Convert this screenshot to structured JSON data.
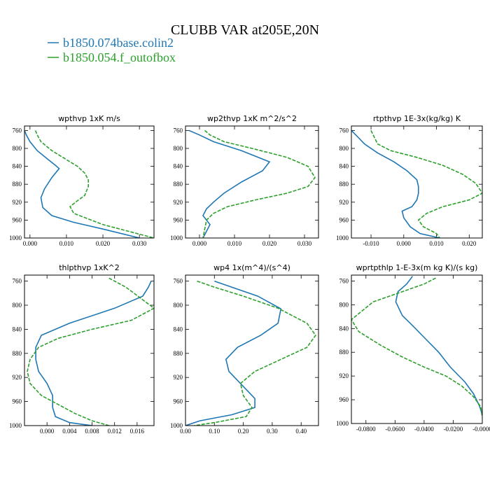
{
  "figure": {
    "title": "CLUBB VAR at205E,20N",
    "colors": {
      "base": "#1f77b4",
      "test": "#2ca02c"
    },
    "legend": [
      {
        "label": "b1850.074base.colin2",
        "color": "#1f77b4",
        "dash": "solid"
      },
      {
        "label": "b1850.054.f_outofbox",
        "color": "#2ca02c",
        "dash": "dashed"
      }
    ]
  },
  "chart_data": [
    {
      "type": "line",
      "title": "wpthvp   1xK m/s",
      "ylim": [
        1000,
        750
      ],
      "yticks": [
        760,
        800,
        840,
        880,
        920,
        960,
        1000
      ],
      "xlim": [
        -0.0015,
        0.034
      ],
      "xticks": [
        0.0,
        0.01,
        0.02,
        0.03
      ],
      "xtick_labels": [
        "0.000",
        "0.010",
        "0.020",
        "0.030"
      ],
      "series": [
        {
          "name": "b1850.074base.colin2",
          "color": "#1f77b4",
          "dash": "solid",
          "x": [
            -0.0015,
            -0.001,
            0.0,
            0.002,
            0.005,
            0.007,
            0.008,
            0.006,
            0.004,
            0.003,
            0.0035,
            0.006,
            0.012,
            0.02,
            0.03
          ],
          "y": [
            760,
            770,
            785,
            805,
            825,
            838,
            845,
            865,
            890,
            910,
            932,
            950,
            965,
            980,
            1000
          ]
        },
        {
          "name": "b1850.054.f_outofbox",
          "color": "#2ca02c",
          "dash": "dashed",
          "x": [
            0.0015,
            0.002,
            0.003,
            0.006,
            0.01,
            0.013,
            0.015,
            0.016,
            0.016,
            0.015,
            0.0125,
            0.011,
            0.012,
            0.02,
            0.034
          ],
          "y": [
            760,
            770,
            785,
            805,
            825,
            840,
            855,
            870,
            885,
            905,
            920,
            930,
            945,
            970,
            1000
          ]
        }
      ]
    },
    {
      "type": "line",
      "title": "wp2thvp   1xK m^2/s^2",
      "ylim": [
        1000,
        750
      ],
      "yticks": [
        760,
        800,
        840,
        880,
        920,
        960,
        1000
      ],
      "xlim": [
        -0.004,
        0.034
      ],
      "xticks": [
        0.0,
        0.01,
        0.02,
        0.03
      ],
      "xtick_labels": [
        "0.000",
        "0.010",
        "0.020",
        "0.030"
      ],
      "series": [
        {
          "name": "b1850.074base.colin2",
          "color": "#1f77b4",
          "dash": "solid",
          "x": [
            -0.003,
            0.0,
            0.004,
            0.012,
            0.02,
            0.018,
            0.012,
            0.007,
            0.004,
            0.002,
            0.001,
            0.002,
            0.003,
            0.002,
            0.001
          ],
          "y": [
            760,
            770,
            785,
            805,
            830,
            850,
            875,
            900,
            920,
            935,
            950,
            960,
            970,
            985,
            1000
          ]
        },
        {
          "name": "b1850.054.f_outofbox",
          "color": "#2ca02c",
          "dash": "dashed",
          "x": [
            0.0015,
            0.003,
            0.007,
            0.015,
            0.025,
            0.031,
            0.033,
            0.031,
            0.025,
            0.016,
            0.008,
            0.004,
            0.002,
            0.0015,
            0.001
          ],
          "y": [
            760,
            770,
            785,
            800,
            820,
            840,
            865,
            885,
            900,
            915,
            930,
            945,
            960,
            980,
            1000
          ]
        }
      ]
    },
    {
      "type": "line",
      "title": "rtpthvp   1E-3x(kg/kg) K",
      "ylim": [
        1000,
        750
      ],
      "yticks": [
        760,
        800,
        840,
        880,
        920,
        960,
        1000
      ],
      "xlim": [
        -0.016,
        0.024
      ],
      "xticks": [
        -0.01,
        0.0,
        0.01,
        0.02
      ],
      "xtick_labels": [
        "-0.010",
        "0.000",
        "0.010",
        "0.020"
      ],
      "series": [
        {
          "name": "b1850.074base.colin2",
          "color": "#1f77b4",
          "dash": "solid",
          "x": [
            -0.016,
            -0.014,
            -0.012,
            -0.008,
            -0.003,
            0.001,
            0.004,
            0.0045,
            0.0045,
            0.004,
            0.0025,
            -0.0005,
            0.0,
            0.002,
            0.005,
            0.011
          ],
          "y": [
            760,
            775,
            790,
            810,
            830,
            850,
            870,
            885,
            900,
            915,
            930,
            940,
            955,
            975,
            990,
            1000
          ]
        },
        {
          "name": "b1850.054.f_outofbox",
          "color": "#2ca02c",
          "dash": "dashed",
          "x": [
            -0.01,
            -0.009,
            -0.008,
            -0.004,
            0.004,
            0.012,
            0.018,
            0.022,
            0.024,
            0.02,
            0.012,
            0.007,
            0.0045,
            0.006,
            0.01,
            0.011
          ],
          "y": [
            760,
            775,
            790,
            805,
            820,
            838,
            858,
            878,
            900,
            915,
            930,
            945,
            960,
            975,
            990,
            1000
          ]
        }
      ]
    },
    {
      "type": "line",
      "title": "thlpthvp   1xK^2",
      "ylim": [
        1000,
        750
      ],
      "yticks": [
        760,
        800,
        840,
        880,
        920,
        960,
        1000
      ],
      "xlim": [
        -0.004,
        0.019
      ],
      "xticks": [
        0.0,
        0.004,
        0.008,
        0.012,
        0.016
      ],
      "xtick_labels": [
        "0.000",
        "0.004",
        "0.008",
        "0.012",
        "0.016"
      ],
      "series": [
        {
          "name": "b1850.074base.colin2",
          "color": "#1f77b4",
          "dash": "solid",
          "x": [
            0.0185,
            0.018,
            0.017,
            0.012,
            0.004,
            -0.001,
            -0.002,
            -0.002,
            -0.0015,
            0.0,
            0.001,
            0.001,
            0.0015,
            0.004,
            0.008
          ],
          "y": [
            760,
            770,
            785,
            805,
            830,
            850,
            870,
            890,
            910,
            930,
            950,
            970,
            985,
            995,
            1000
          ]
        },
        {
          "name": "b1850.054.f_outofbox",
          "color": "#2ca02c",
          "dash": "dashed",
          "x": [
            0.011,
            0.014,
            0.019,
            0.015,
            0.008,
            0.002,
            -0.0015,
            -0.003,
            -0.0035,
            -0.003,
            -0.001,
            0.002,
            0.005,
            0.008,
            0.011
          ],
          "y": [
            755,
            770,
            805,
            825,
            840,
            855,
            870,
            890,
            910,
            930,
            950,
            965,
            980,
            992,
            1000
          ]
        }
      ]
    },
    {
      "type": "line",
      "title": "wp4   1x(m^4)/(s^4)",
      "ylim": [
        1000,
        750
      ],
      "yticks": [
        760,
        800,
        840,
        880,
        920,
        960,
        1000
      ],
      "xlim": [
        0.0,
        0.46
      ],
      "xticks": [
        0.0,
        0.1,
        0.2,
        0.3,
        0.4
      ],
      "xtick_labels": [
        "0.00",
        "0.10",
        "0.20",
        "0.30",
        "0.40"
      ],
      "series": [
        {
          "name": "b1850.074base.colin2",
          "color": "#1f77b4",
          "dash": "solid",
          "x": [
            0.1,
            0.16,
            0.25,
            0.33,
            0.32,
            0.26,
            0.18,
            0.14,
            0.15,
            0.19,
            0.24,
            0.24,
            0.16,
            0.05,
            0.0
          ],
          "y": [
            760,
            770,
            785,
            806,
            830,
            850,
            870,
            890,
            910,
            930,
            955,
            970,
            982,
            992,
            1000
          ]
        },
        {
          "name": "b1850.054.f_outofbox",
          "color": "#2ca02c",
          "dash": "dashed",
          "x": [
            0.04,
            0.1,
            0.2,
            0.32,
            0.42,
            0.45,
            0.42,
            0.33,
            0.24,
            0.19,
            0.2,
            0.23,
            0.21,
            0.1,
            0.03
          ],
          "y": [
            760,
            770,
            785,
            805,
            830,
            850,
            870,
            890,
            910,
            930,
            950,
            970,
            985,
            995,
            1000
          ]
        }
      ]
    },
    {
      "type": "line",
      "title": "wprtpthlp   1-E-3x(m kg K)/(s kg)",
      "ylim": [
        1000,
        750
      ],
      "yticks": [
        760,
        800,
        840,
        880,
        920,
        960,
        1000
      ],
      "xlim": [
        -0.09,
        0.0
      ],
      "xticks": [
        -0.08,
        -0.06,
        -0.04,
        -0.02,
        0.0
      ],
      "xtick_labels": [
        "-0.0800",
        "-0.0600",
        "-0.0400",
        "-0.0200",
        "-0.0000"
      ],
      "series": [
        {
          "name": "b1850.074base.colin2",
          "color": "#1f77b4",
          "dash": "solid",
          "x": [
            -0.048,
            -0.052,
            -0.058,
            -0.0595,
            -0.055,
            -0.048,
            -0.04,
            -0.03,
            -0.022,
            -0.012,
            -0.006,
            -0.002,
            0.0
          ],
          "y": [
            752,
            765,
            778,
            795,
            818,
            835,
            855,
            880,
            905,
            930,
            950,
            970,
            985
          ]
        },
        {
          "name": "b1850.054.f_outofbox",
          "color": "#2ca02c",
          "dash": "dashed",
          "x": [
            -0.032,
            -0.04,
            -0.055,
            -0.075,
            -0.08,
            -0.09,
            -0.085,
            -0.07,
            -0.055,
            -0.04,
            -0.025,
            -0.014,
            -0.006,
            -0.001,
            0.0
          ],
          "y": [
            755,
            765,
            778,
            795,
            805,
            825,
            845,
            868,
            888,
            905,
            920,
            937,
            955,
            972,
            990
          ]
        }
      ]
    }
  ]
}
